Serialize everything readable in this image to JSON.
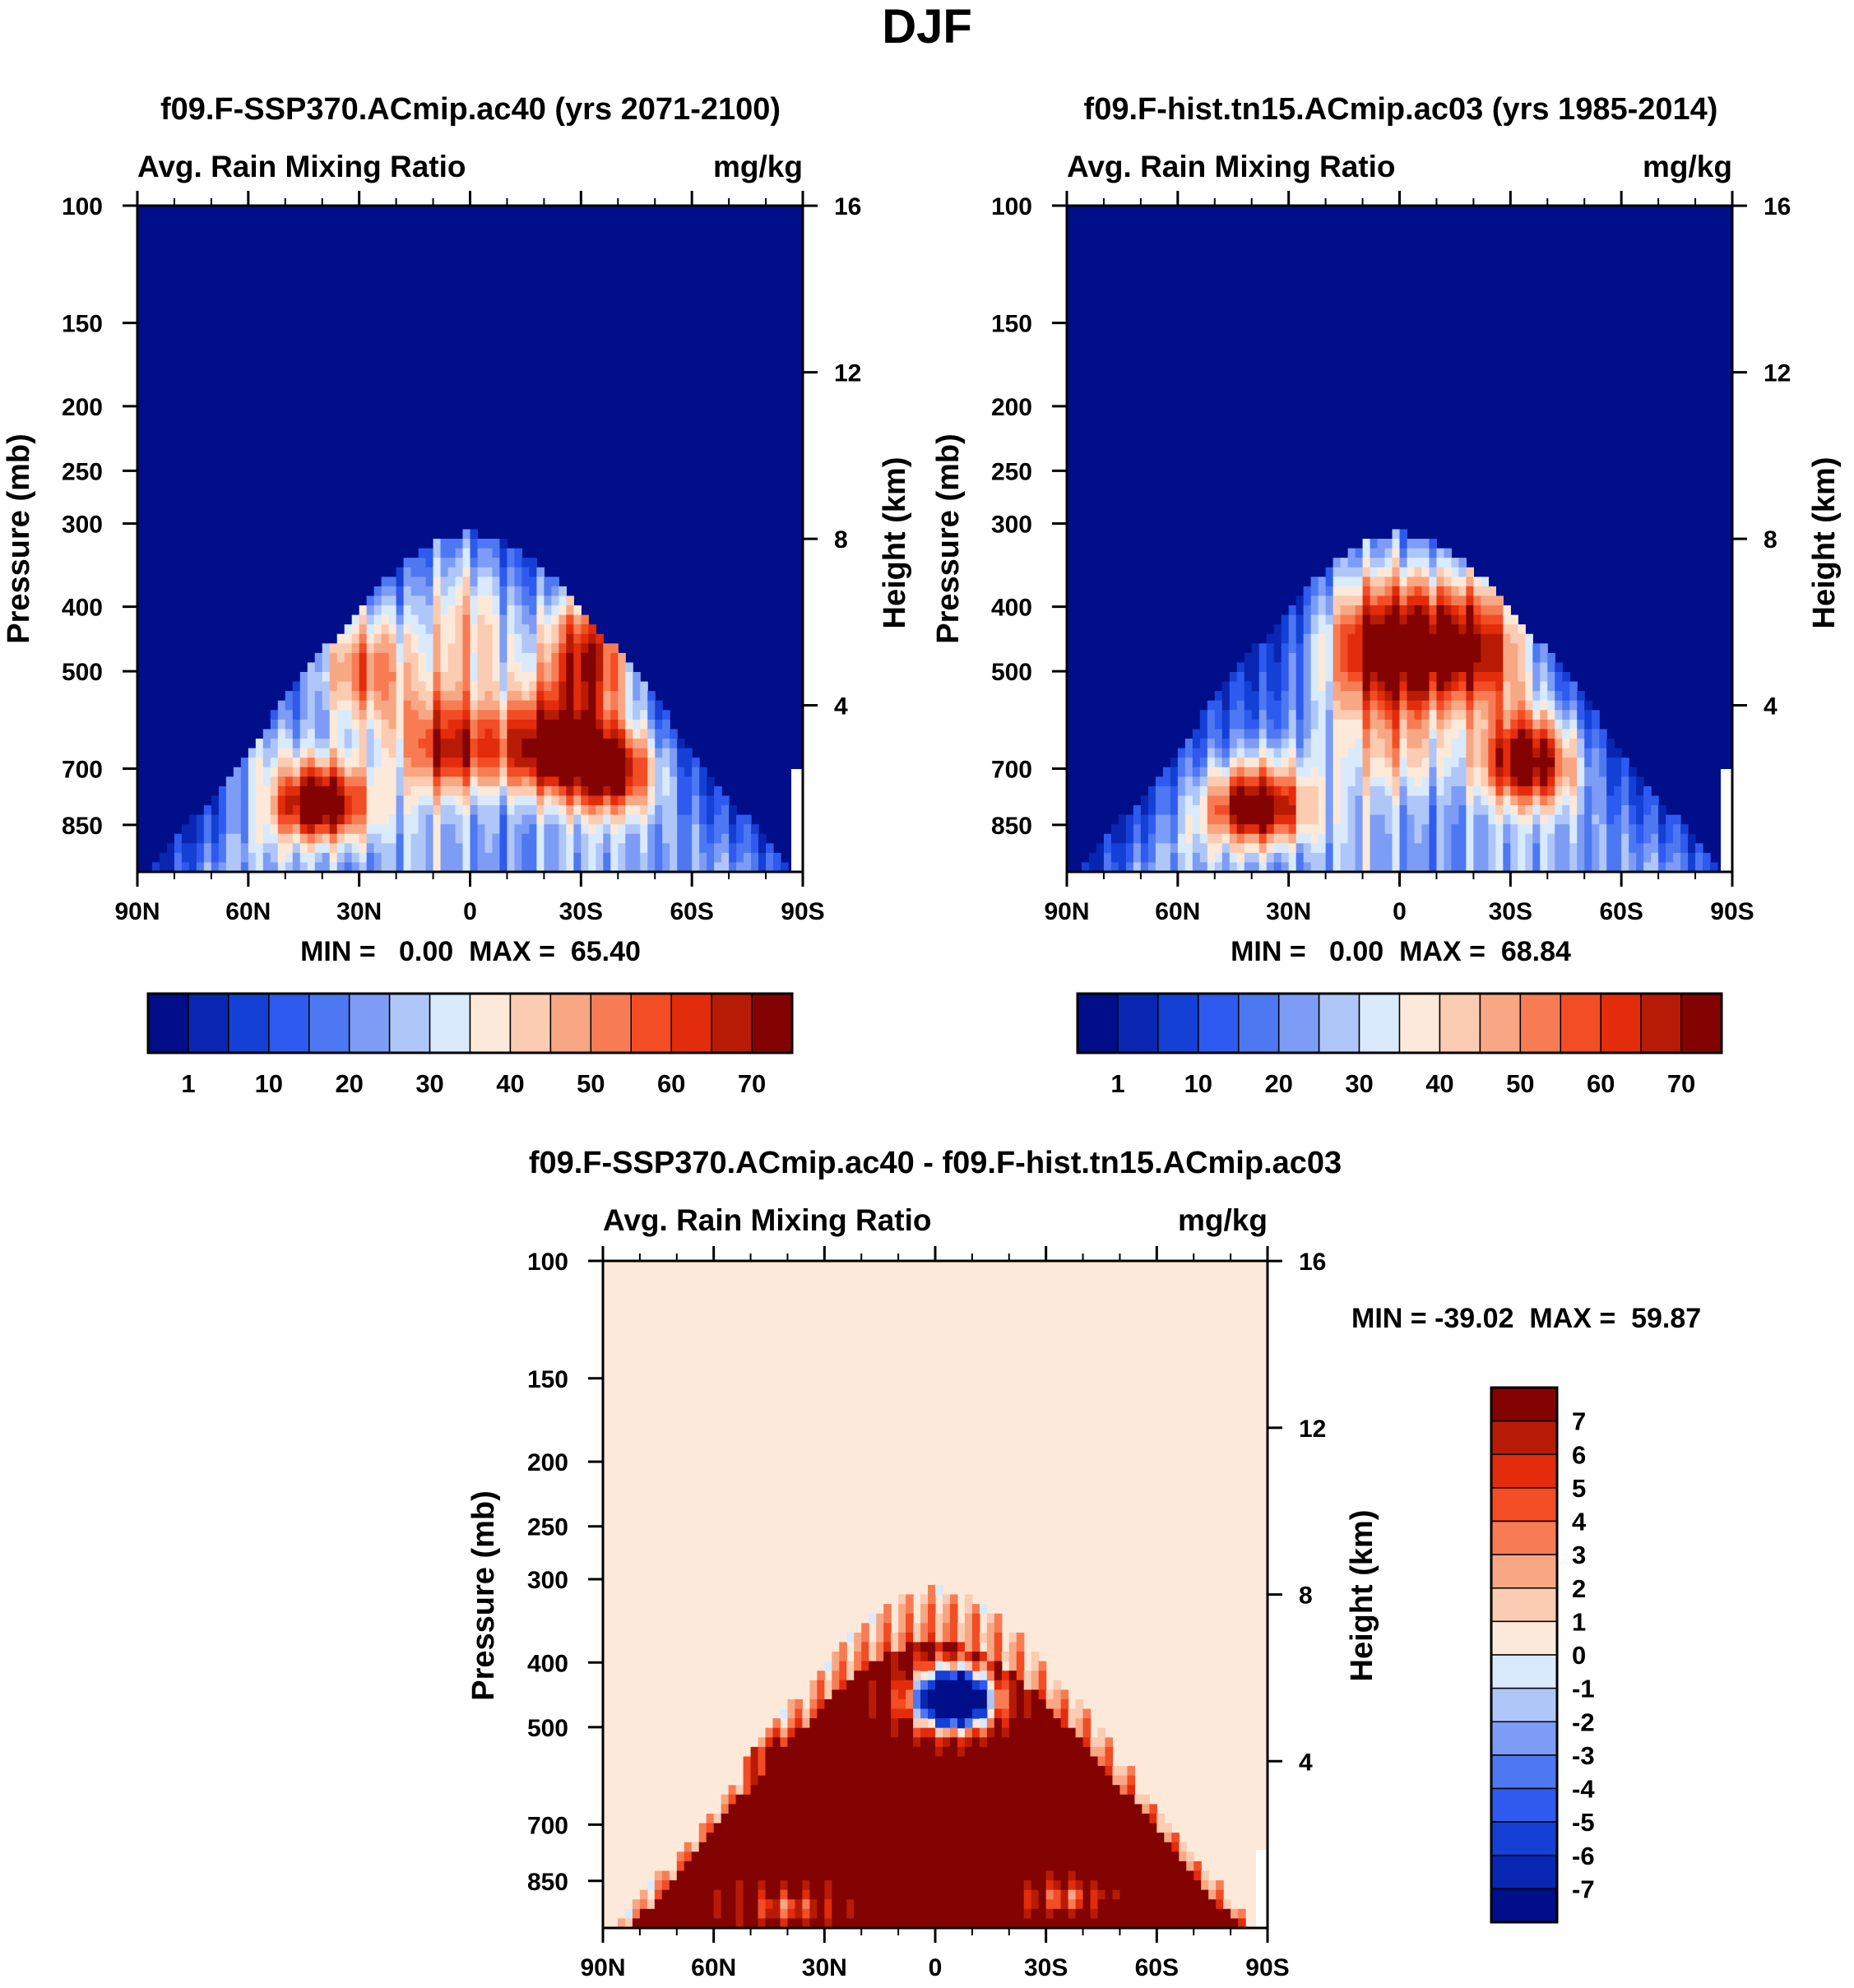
{
  "title": "DJF",
  "colors": {
    "abs_levels": [
      "#000e8a",
      "#0826b1",
      "#1540d6",
      "#2e5af0",
      "#4d78f2",
      "#7d9cf5",
      "#afc6f8",
      "#d9eafd",
      "#fde9d9",
      "#fbcbb2",
      "#f8a784",
      "#f77c54",
      "#f24d25",
      "#e32c0c",
      "#b81b05",
      "#830303"
    ],
    "diff_levels": [
      "#000e8a",
      "#0826b1",
      "#1540d6",
      "#2e5af0",
      "#4d78f2",
      "#7d9cf5",
      "#afc6f8",
      "#d9eafd",
      "#fde9d9",
      "#fbcbb2",
      "#f8a784",
      "#f77c54",
      "#f24d25",
      "#e32c0c",
      "#b81b05",
      "#830303"
    ]
  },
  "chart_data": [
    {
      "type": "heatmap",
      "title": "f09.F-SSP370.ACmip.ac40 (yrs 2071-2100)",
      "left_label": "Avg. Rain Mixing Ratio",
      "right_label": "mg/kg",
      "ylabel": "Pressure (mb)",
      "y2label": "Height (km)",
      "x_ticks": [
        "90N",
        "60N",
        "30N",
        "0",
        "30S",
        "60S",
        "90S"
      ],
      "x_range": [
        90,
        -90
      ],
      "y_ticks": [
        100,
        150,
        200,
        250,
        300,
        400,
        500,
        700,
        850
      ],
      "y_range": [
        100,
        1000
      ],
      "y2_ticks": [
        16,
        12,
        8,
        4
      ],
      "stats": "MIN =   0.00  MAX =  65.40",
      "min": 0.0,
      "max": 65.4,
      "colorbar_labels": [
        "1",
        "10",
        "20",
        "30",
        "40",
        "50",
        "60",
        "70"
      ],
      "background": 0,
      "blobs": [
        {
          "lat": 40,
          "p": 790,
          "v": 62
        },
        {
          "lat": -20,
          "p": 650,
          "v": 52
        },
        {
          "lat": -38,
          "p": 700,
          "v": 55
        },
        {
          "lat": 5,
          "p": 650,
          "v": 42
        },
        {
          "lat": -32,
          "p": 470,
          "v": 55
        },
        {
          "lat": 30,
          "p": 490,
          "v": 45
        },
        {
          "lat": 0,
          "p": 420,
          "v": 28
        },
        {
          "lat": 60,
          "p": 650,
          "v": 15
        }
      ]
    },
    {
      "type": "heatmap",
      "title": "f09.F-hist.tn15.ACmip.ac03 (yrs 1985-2014)",
      "left_label": "Avg. Rain Mixing Ratio",
      "right_label": "mg/kg",
      "ylabel": "Pressure (mb)",
      "y2label": "Height (km)",
      "x_ticks": [
        "90N",
        "60N",
        "30N",
        "0",
        "30S",
        "60S",
        "90S"
      ],
      "x_range": [
        90,
        -90
      ],
      "y_ticks": [
        100,
        150,
        200,
        250,
        300,
        400,
        500,
        700,
        850
      ],
      "y_range": [
        100,
        1000
      ],
      "y2_ticks": [
        16,
        12,
        8,
        4
      ],
      "stats": "MIN =   0.00  MAX =  68.84",
      "min": 0.0,
      "max": 68.84,
      "colorbar_labels": [
        "1",
        "10",
        "20",
        "30",
        "40",
        "50",
        "60",
        "70"
      ],
      "background": 0,
      "blobs": [
        {
          "lat": 38,
          "p": 800,
          "v": 60
        },
        {
          "lat": -35,
          "p": 680,
          "v": 55
        },
        {
          "lat": -5,
          "p": 455,
          "v": 50
        },
        {
          "lat": -22,
          "p": 455,
          "v": 52
        },
        {
          "lat": 10,
          "p": 455,
          "v": 40
        },
        {
          "lat": 0,
          "p": 650,
          "v": 20
        }
      ]
    },
    {
      "type": "heatmap",
      "title": "f09.F-SSP370.ACmip.ac40 - f09.F-hist.tn15.ACmip.ac03",
      "left_label": "Avg. Rain Mixing Ratio",
      "right_label": "mg/kg",
      "ylabel": "Pressure (mb)",
      "y2label": "Height (km)",
      "x_ticks": [
        "90N",
        "60N",
        "30N",
        "0",
        "30S",
        "60S",
        "90S"
      ],
      "x_range": [
        90,
        -90
      ],
      "y_ticks": [
        100,
        150,
        200,
        250,
        300,
        400,
        500,
        700,
        850
      ],
      "y_range": [
        100,
        1000
      ],
      "y2_ticks": [
        16,
        12,
        8,
        4
      ],
      "stats": "MIN = -39.02  MAX =  59.87",
      "min": -39.02,
      "max": 59.87,
      "colorbar_labels": [
        "7",
        "6",
        "5",
        "4",
        "3",
        "2",
        "1",
        "0",
        "-1",
        "-2",
        "-3",
        "-4",
        "-5",
        "-6",
        "-7"
      ],
      "background": 0.5,
      "blobs": [
        {
          "lat": -5,
          "p": 455,
          "v": -30
        },
        {
          "lat": 45,
          "p": 550,
          "v": 4
        },
        {
          "lat": -35,
          "p": 900,
          "v": -5
        },
        {
          "lat": 40,
          "p": 930,
          "v": -5
        }
      ]
    }
  ]
}
